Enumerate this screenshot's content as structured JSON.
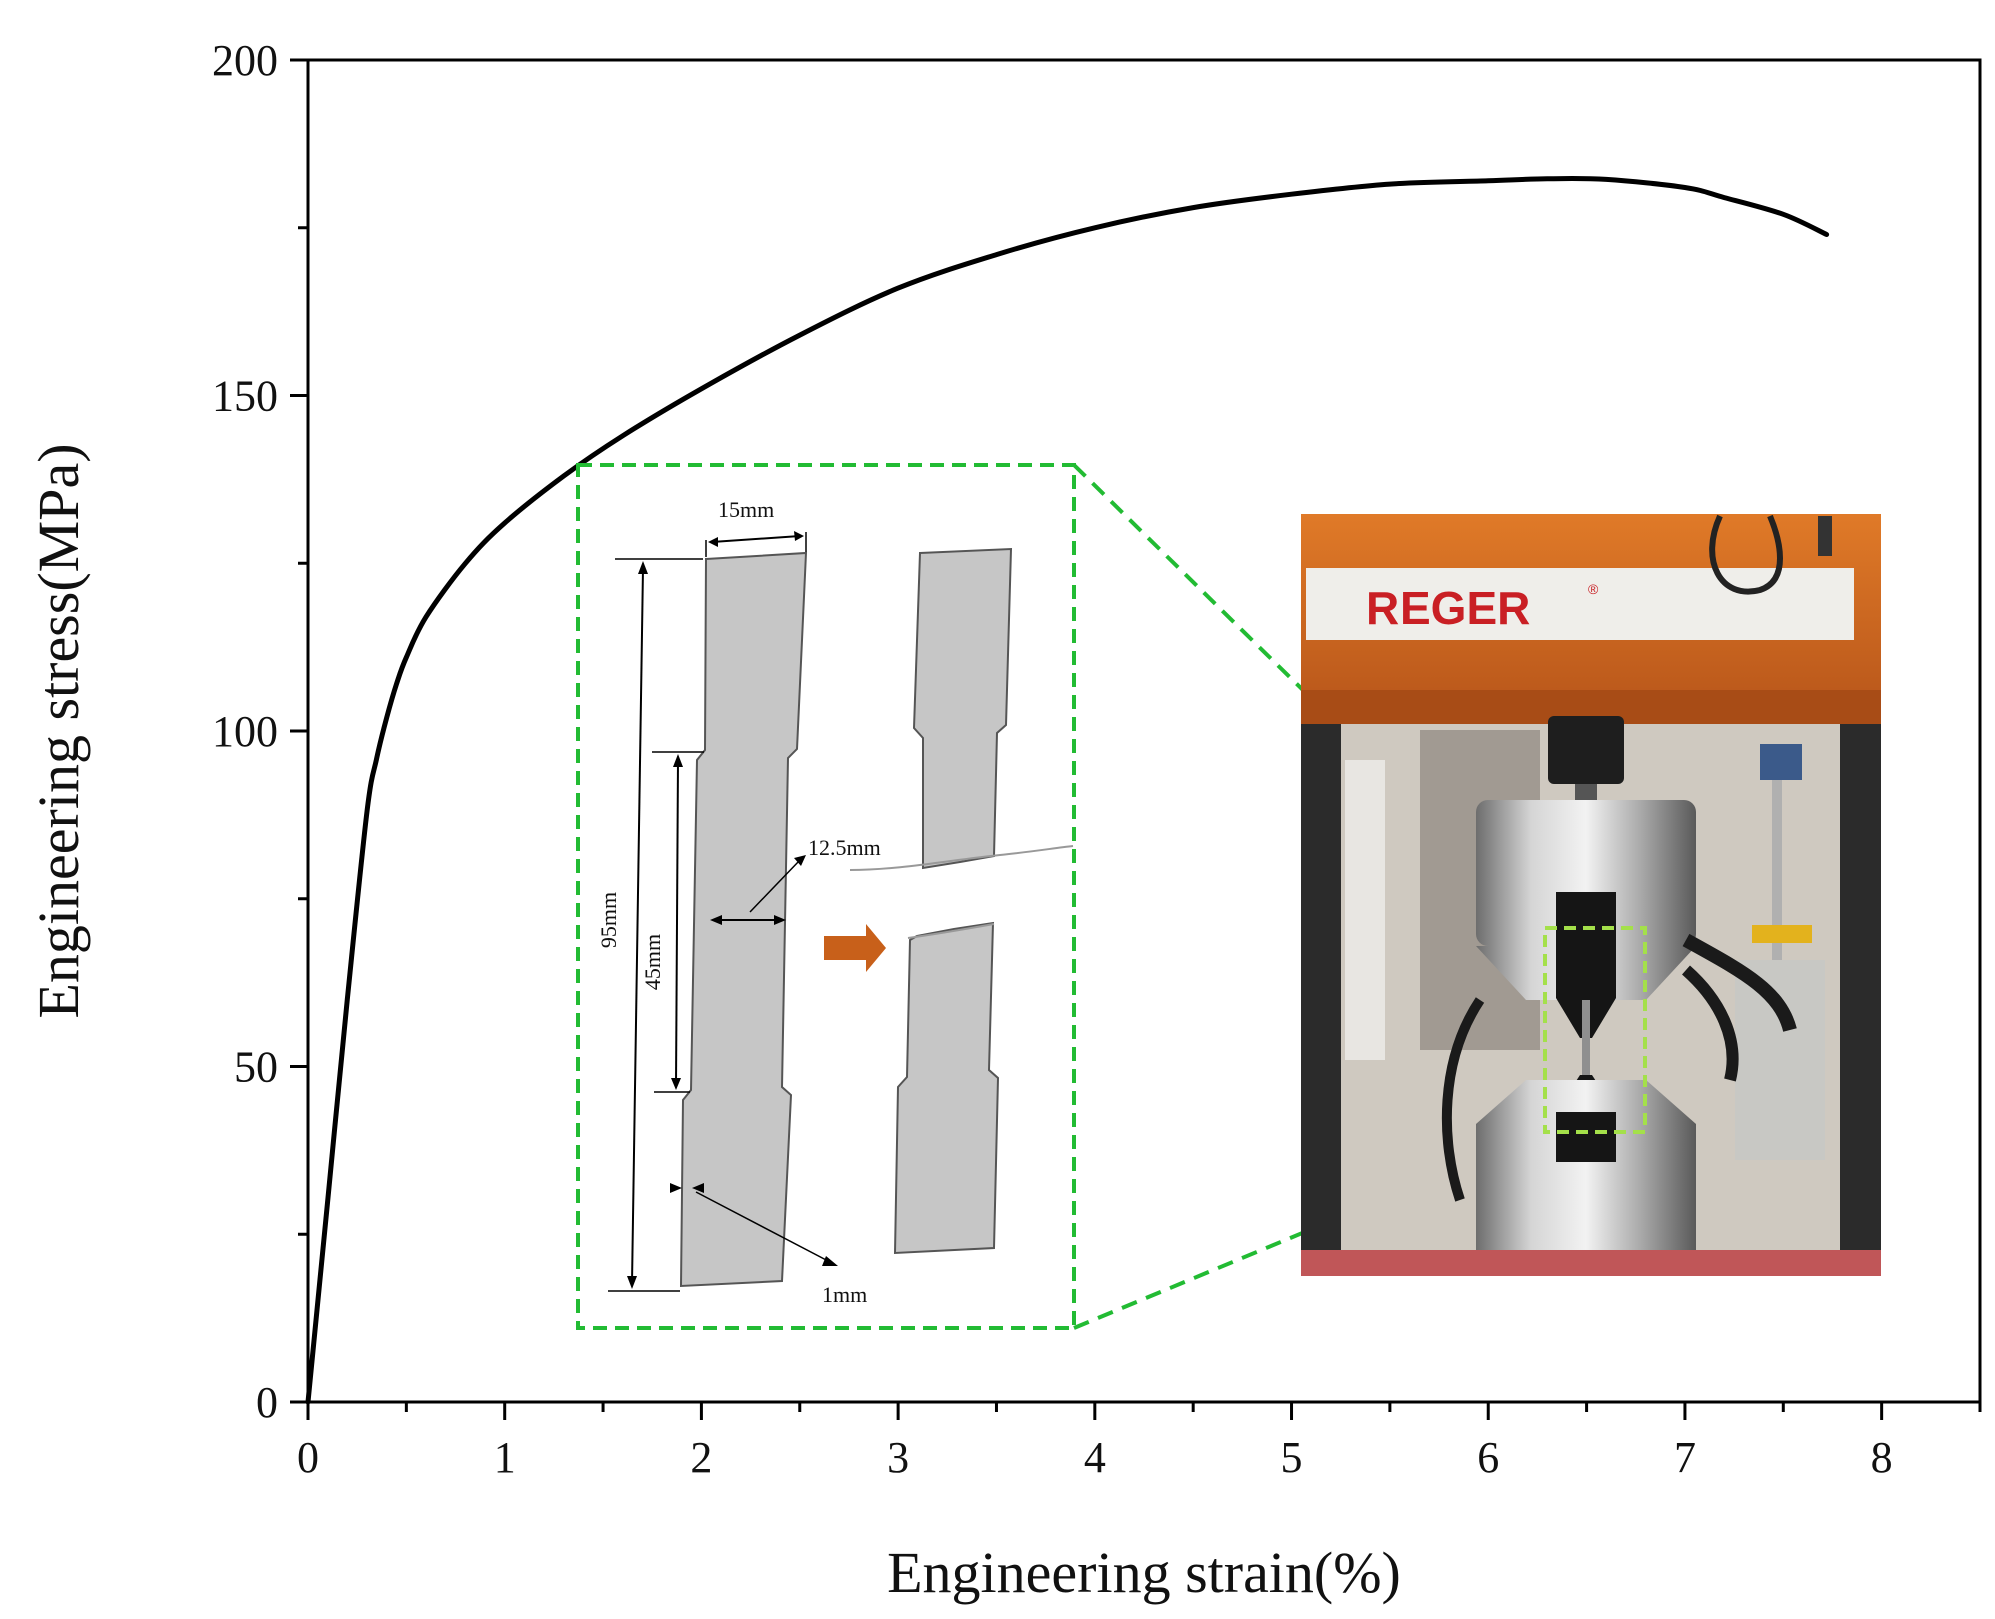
{
  "chart_data": {
    "type": "line",
    "title": "",
    "xlabel": "Engineering strain(%)",
    "ylabel": "Engineering stress(MPa)",
    "xlim": [
      0,
      8.5
    ],
    "ylim": [
      0,
      200
    ],
    "xticks": [
      0,
      1,
      2,
      3,
      4,
      5,
      6,
      7,
      8
    ],
    "yticks": [
      0,
      50,
      100,
      150,
      200
    ],
    "grid": false,
    "legend": "none",
    "series": [
      {
        "color": "#000000",
        "x": [
          0,
          0.1,
          0.2,
          0.3,
          0.35,
          0.4,
          0.45,
          0.5,
          0.6,
          0.8,
          1.0,
          1.3,
          1.6,
          2.0,
          2.5,
          3.0,
          3.5,
          4.0,
          4.5,
          5.0,
          5.5,
          6.0,
          6.3,
          6.6,
          7.0,
          7.2,
          7.5,
          7.72
        ],
        "y": [
          0,
          30,
          60,
          88,
          96,
          102,
          107,
          111,
          117,
          125,
          131,
          138,
          144,
          151,
          159,
          166,
          171,
          175,
          178,
          180,
          181.5,
          182,
          182.3,
          182.2,
          181,
          179.5,
          177,
          174
        ]
      }
    ]
  },
  "inset": {
    "specimen_dimensions": {
      "width_top": "15mm",
      "gauge_width": "12.5mm",
      "total_length": "95mm",
      "gauge_length": "45mm",
      "fillet": "1mm"
    },
    "frame_color": "#22bb33",
    "machine_logo": {
      "mark": "R",
      "rest": "EGER",
      "registered": "®"
    }
  }
}
